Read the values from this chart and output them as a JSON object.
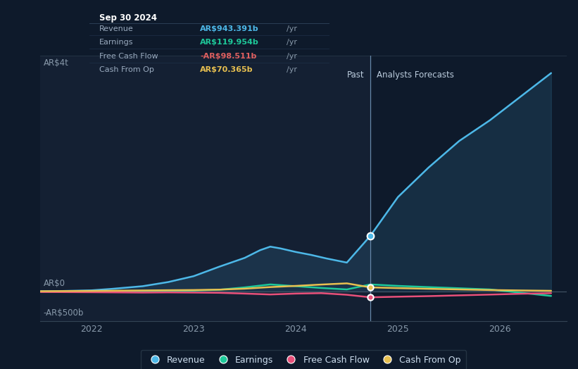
{
  "bg_color": "#0e1a2b",
  "past_bg_color": "#142033",
  "forecast_bg_color": "#0e1a2b",
  "ylabel_top": "AR$4t",
  "ylabel_zero": "AR$0",
  "ylabel_bottom": "-AR$500b",
  "x_ticks": [
    2022,
    2023,
    2024,
    2025,
    2026
  ],
  "divider_x": 2024.73,
  "past_label": "Past",
  "forecast_label": "Analysts Forecasts",
  "tooltip": {
    "date": "Sep 30 2024",
    "revenue": "AR$943.391b",
    "earnings": "AR$119.954b",
    "fcf": "-AR$98.511b",
    "cashop": "AR$70.365b"
  },
  "revenue_color": "#4db8e8",
  "earnings_color": "#1ec99a",
  "fcf_color": "#e8507a",
  "cashop_color": "#e8c050",
  "revenue_x": [
    2021.5,
    2021.7,
    2022.0,
    2022.2,
    2022.5,
    2022.75,
    2023.0,
    2023.25,
    2023.5,
    2023.65,
    2023.75,
    2023.85,
    2024.0,
    2024.15,
    2024.3,
    2024.5,
    2024.73,
    2025.0,
    2025.3,
    2025.6,
    2025.9,
    2026.2,
    2026.5
  ],
  "revenue_y": [
    5,
    8,
    20,
    45,
    90,
    160,
    260,
    420,
    570,
    700,
    760,
    730,
    670,
    620,
    560,
    490,
    943,
    1600,
    2100,
    2550,
    2900,
    3300,
    3700
  ],
  "earnings_x": [
    2021.5,
    2022.0,
    2022.5,
    2022.75,
    2023.0,
    2023.25,
    2023.5,
    2023.75,
    2024.0,
    2024.25,
    2024.5,
    2024.73,
    2025.0,
    2025.3,
    2025.6,
    2025.9,
    2026.2,
    2026.5
  ],
  "earnings_y": [
    -5,
    0,
    5,
    10,
    15,
    30,
    70,
    120,
    90,
    60,
    35,
    120,
    95,
    75,
    55,
    35,
    -20,
    -75
  ],
  "fcf_x": [
    2021.5,
    2022.0,
    2022.5,
    2022.75,
    2023.0,
    2023.25,
    2023.5,
    2023.75,
    2024.0,
    2024.25,
    2024.5,
    2024.73,
    2025.0,
    2025.3,
    2025.6,
    2025.9,
    2026.2,
    2026.5
  ],
  "fcf_y": [
    -8,
    -12,
    -18,
    -15,
    -18,
    -22,
    -35,
    -50,
    -35,
    -28,
    -55,
    -98,
    -88,
    -78,
    -65,
    -52,
    -38,
    -28
  ],
  "cashop_x": [
    2021.5,
    2022.0,
    2022.5,
    2022.75,
    2023.0,
    2023.25,
    2023.5,
    2023.75,
    2024.0,
    2024.25,
    2024.5,
    2024.73,
    2025.0,
    2025.3,
    2025.6,
    2025.9,
    2026.2,
    2026.5
  ],
  "cashop_y": [
    5,
    10,
    18,
    22,
    25,
    32,
    48,
    75,
    95,
    118,
    138,
    70,
    58,
    46,
    35,
    25,
    18,
    12
  ],
  "ylim": [
    -500,
    4000
  ],
  "xlim": [
    2021.5,
    2026.65
  ],
  "marker_rev_x": 2024.73,
  "legend_items": [
    "Revenue",
    "Earnings",
    "Free Cash Flow",
    "Cash From Op"
  ]
}
